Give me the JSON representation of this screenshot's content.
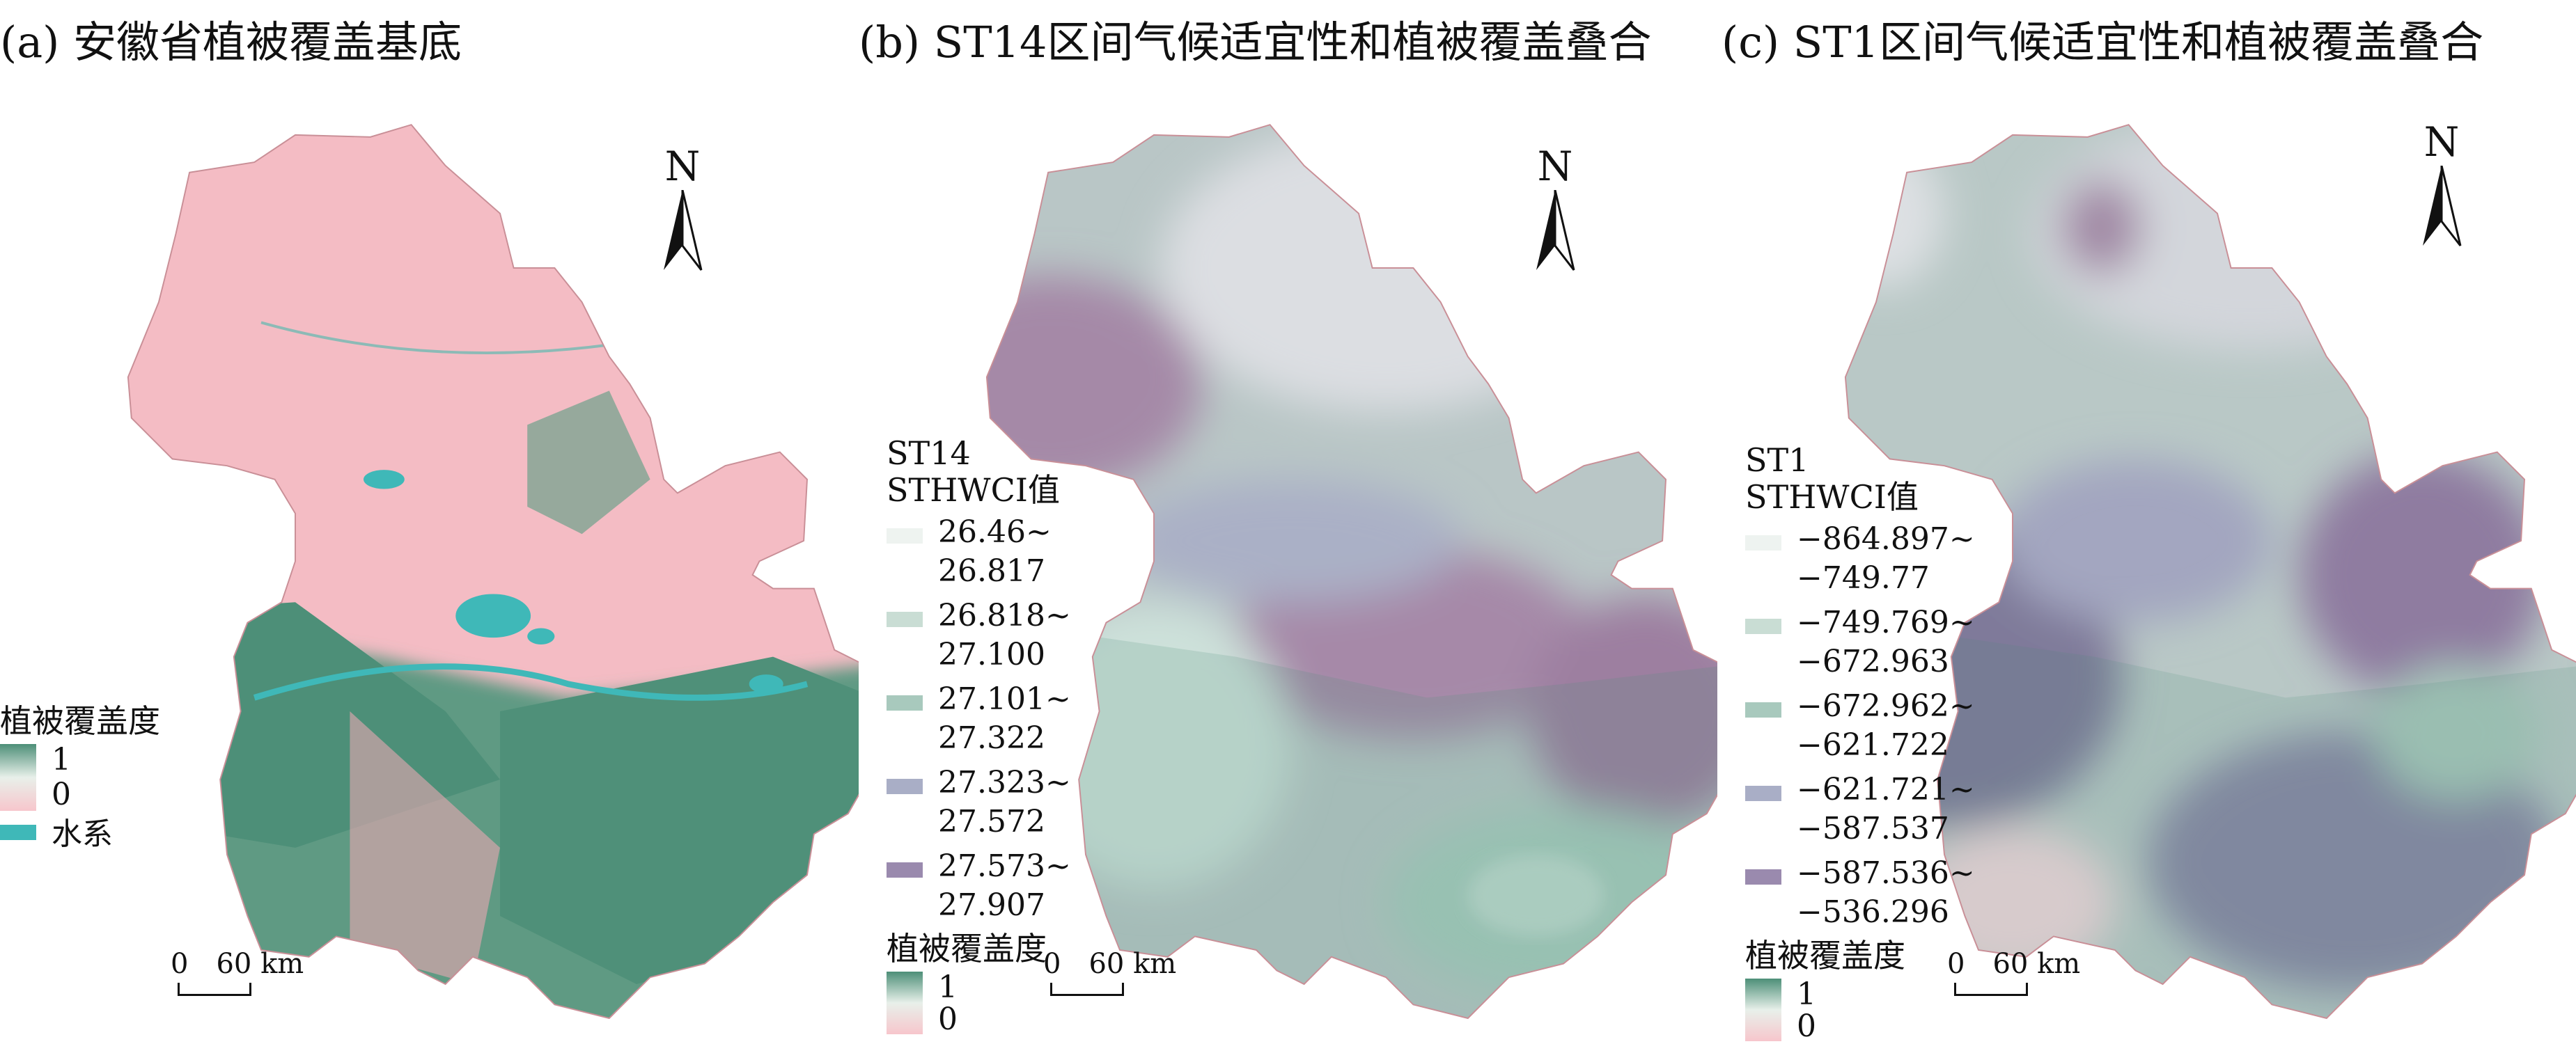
{
  "panels": [
    {
      "title": "(a) 安徽省植被覆盖基底",
      "legend": {
        "title": "植被覆盖度",
        "gradient_high": "1",
        "gradient_low": "0",
        "water_label": "水系"
      },
      "north_label": "N",
      "scale": {
        "start": "0",
        "end": "60 km"
      }
    },
    {
      "title": "(b) ST14区间气候适宜性和植被覆盖叠合",
      "legend": {
        "title_line1": "ST14",
        "title_line2": "STHWCI值",
        "classes": [
          {
            "line1": "26.46~",
            "line2": "26.817"
          },
          {
            "line1": "26.818~",
            "line2": "27.100"
          },
          {
            "line1": "27.101~",
            "line2": "27.322"
          },
          {
            "line1": "27.323~",
            "line2": "27.572"
          },
          {
            "line1": "27.573~",
            "line2": "27.907"
          }
        ],
        "veg_title": "植被覆盖度",
        "gradient_high": "1",
        "gradient_low": "0"
      },
      "north_label": "N",
      "scale": {
        "start": "0",
        "end": "60 km"
      }
    },
    {
      "title": "(c) ST1区间气候适宜性和植被覆盖叠合",
      "legend": {
        "title_line1": "ST1",
        "title_line2": "STHWCI值",
        "classes": [
          {
            "line1": "−864.897~",
            "line2": "−749.77"
          },
          {
            "line1": "−749.769~",
            "line2": "−672.963"
          },
          {
            "line1": "−672.962~",
            "line2": "−621.722"
          },
          {
            "line1": "−621.721~",
            "line2": "−587.537"
          },
          {
            "line1": "−587.536~",
            "line2": "−536.296"
          }
        ],
        "veg_title": "植被覆盖度",
        "gradient_high": "1",
        "gradient_low": "0"
      },
      "north_label": "N",
      "scale": {
        "start": "0",
        "end": "60 km"
      }
    }
  ],
  "colors": {
    "veg_high": "#4d8f78",
    "veg_low": "#f7c6cc",
    "water": "#3fb8b8",
    "class_swatches": [
      "#eef3f0",
      "#c9ddd4",
      "#a8c9bd",
      "#a9aec6",
      "#9a8aae"
    ]
  }
}
